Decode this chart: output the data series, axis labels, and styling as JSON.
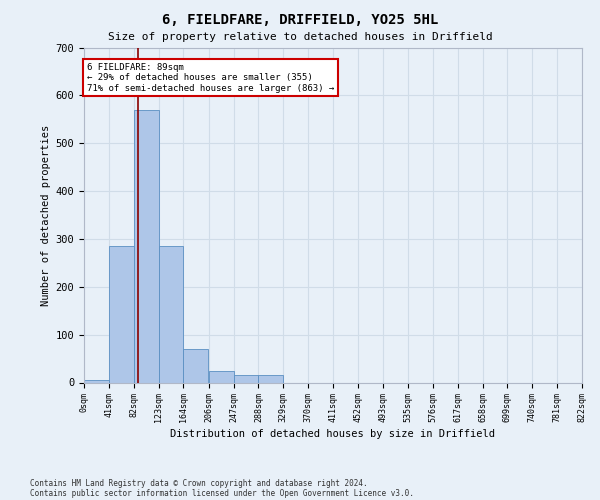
{
  "title1": "6, FIELDFARE, DRIFFIELD, YO25 5HL",
  "title2": "Size of property relative to detached houses in Driffield",
  "xlabel": "Distribution of detached houses by size in Driffield",
  "ylabel": "Number of detached properties",
  "footnote1": "Contains HM Land Registry data © Crown copyright and database right 2024.",
  "footnote2": "Contains public sector information licensed under the Open Government Licence v3.0.",
  "annotation_line1": "6 FIELDFARE: 89sqm",
  "annotation_line2": "← 29% of detached houses are smaller (355)",
  "annotation_line3": "71% of semi-detached houses are larger (863) →",
  "bin_edges": [
    0,
    41,
    82,
    123,
    164,
    206,
    247,
    288,
    329,
    370,
    411,
    452,
    493,
    535,
    576,
    617,
    658,
    699,
    740,
    781,
    822
  ],
  "bar_heights": [
    5,
    285,
    570,
    285,
    70,
    25,
    15,
    15,
    0,
    0,
    0,
    0,
    0,
    0,
    0,
    0,
    0,
    0,
    0,
    0
  ],
  "bar_color": "#aec6e8",
  "bar_edge_color": "#5a8fc2",
  "vline_x": 89,
  "vline_color": "#8b0000",
  "annotation_box_color": "#ffffff",
  "annotation_box_edge_color": "#cc0000",
  "grid_color": "#d0dce8",
  "bg_color": "#e8f0f8",
  "ylim": [
    0,
    700
  ],
  "yticks": [
    0,
    100,
    200,
    300,
    400,
    500,
    600,
    700
  ]
}
